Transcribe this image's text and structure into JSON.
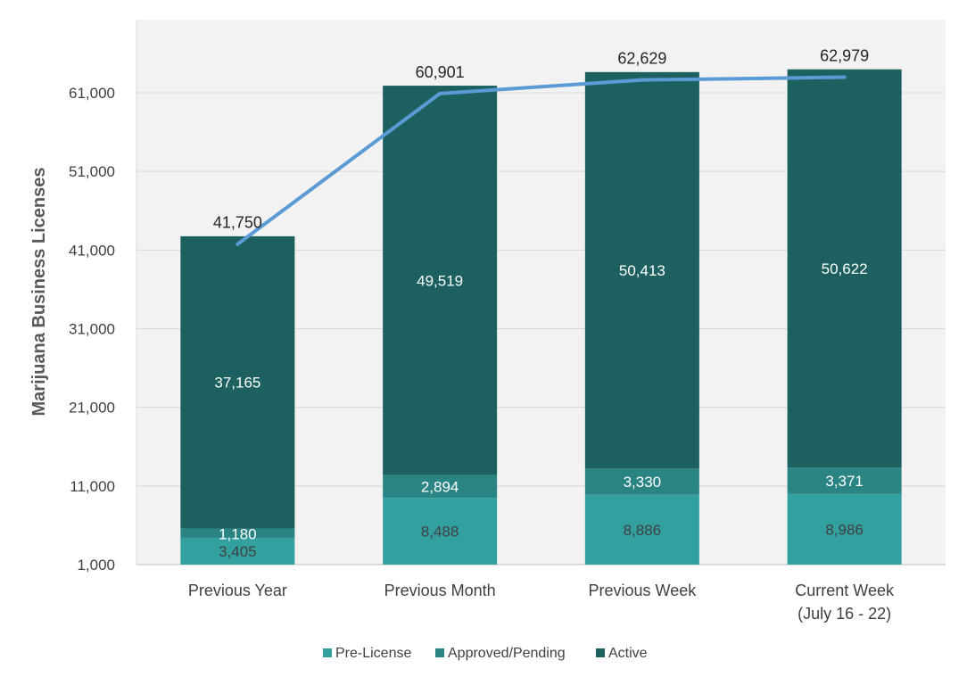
{
  "chart_data": {
    "type": "bar",
    "stacked": true,
    "ylabel": "Marijuana Business Licenses",
    "xlabel": "",
    "ylim": [
      1000,
      71000
    ],
    "yticks": [
      1000,
      11000,
      21000,
      31000,
      41000,
      51000,
      61000
    ],
    "ytick_labels": [
      "1,000",
      "11,000",
      "21,000",
      "31,000",
      "41,000",
      "51,000",
      "61,000"
    ],
    "grid": true,
    "categories": [
      [
        "Previous Year"
      ],
      [
        "Previous Month"
      ],
      [
        "Previous Week"
      ],
      [
        "Current Week",
        "(July 16 - 22)"
      ]
    ],
    "series": [
      {
        "name": "Pre-License",
        "color": "#33a0a0",
        "values": [
          3405,
          8488,
          8886,
          8986
        ],
        "labels": [
          "3,405",
          "8,488",
          "8,886",
          "8,986"
        ]
      },
      {
        "name": "Approved/Pending",
        "color": "#2a8484",
        "values": [
          1180,
          2894,
          3330,
          3371
        ],
        "labels": [
          "1,180",
          "2,894",
          "3,330",
          "3,371"
        ]
      },
      {
        "name": "Active",
        "color": "#1c6060",
        "values": [
          37165,
          49519,
          50413,
          50622
        ],
        "labels": [
          "37,165",
          "49,519",
          "50,413",
          "50,622"
        ]
      }
    ],
    "totals": {
      "color": "#5b9bd5",
      "values": [
        41750,
        60901,
        62629,
        62979
      ],
      "labels": [
        "41,750",
        "60,901",
        "62,629",
        "62,979"
      ]
    },
    "legend_position": "bottom",
    "plot_background": "#f2f2f2",
    "gridline_color": "#d9d9d9"
  }
}
